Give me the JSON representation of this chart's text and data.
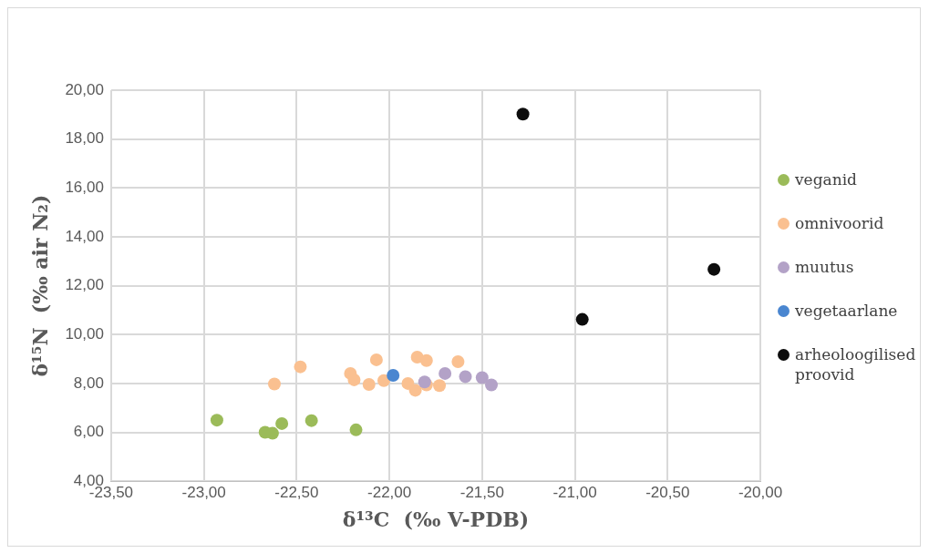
{
  "chart_data": {
    "type": "scatter",
    "xlabel": "δ¹³C  (‰ V-PDB)",
    "ylabel": "δ¹⁵N  (‰ air N₂)",
    "xlim": [
      -23.5,
      -20
    ],
    "xticks": [
      {
        "value": -23.5,
        "label": "-23,50"
      },
      {
        "value": -23,
        "label": "-23,00"
      },
      {
        "value": -22.5,
        "label": "-22,50"
      },
      {
        "value": -22,
        "label": "-22,00"
      },
      {
        "value": -21.5,
        "label": "-21,50"
      },
      {
        "value": -21,
        "label": "-21,00"
      },
      {
        "value": -20.5,
        "label": "-20,50"
      },
      {
        "value": -20,
        "label": "-20,00"
      }
    ],
    "ylim": [
      4,
      20
    ],
    "yticks": [
      {
        "value": 4,
        "label": "4,00"
      },
      {
        "value": 6,
        "label": "6,00"
      },
      {
        "value": 8,
        "label": "8,00"
      },
      {
        "value": 10,
        "label": "10,00"
      },
      {
        "value": 12,
        "label": "12,00"
      },
      {
        "value": 14,
        "label": "14,00"
      },
      {
        "value": 16,
        "label": "16,00"
      },
      {
        "value": 18,
        "label": "18,00"
      },
      {
        "value": 20,
        "label": "20,00"
      }
    ],
    "grid": true,
    "legend": "right",
    "marker": "circle",
    "series": [
      {
        "name": "veganid",
        "color": "#9bbb59",
        "x": [
          -22.93,
          -22.67,
          -22.63,
          -22.58,
          -22.42,
          -22.18
        ],
        "values": [
          6.5,
          6.0,
          5.96,
          6.36,
          6.48,
          6.1
        ]
      },
      {
        "name": "omnivoorid",
        "color": "#fac090",
        "x": [
          -22.62,
          -22.48,
          -22.21,
          -22.19,
          -22.11,
          -22.07,
          -22.03,
          -21.9,
          -21.86,
          -21.85,
          -21.8,
          -21.8,
          -21.73,
          -21.63
        ],
        "values": [
          7.98,
          8.68,
          8.41,
          8.15,
          7.96,
          8.97,
          8.12,
          8.0,
          7.72,
          9.08,
          8.94,
          7.94,
          7.91,
          8.89
        ]
      },
      {
        "name": "muutus",
        "color": "#b3a2c7",
        "x": [
          -21.81,
          -21.7,
          -21.59,
          -21.5,
          -21.45
        ],
        "values": [
          8.06,
          8.41,
          8.28,
          8.24,
          7.94
        ]
      },
      {
        "name": "vegetaarlane",
        "color": "#4a86d0",
        "x": [
          -21.98
        ],
        "values": [
          8.33
        ]
      },
      {
        "name": "arheoloogilised proovid",
        "color": "#0d0d0d",
        "x": [
          -21.28,
          -20.96,
          -20.25
        ],
        "values": [
          19.02,
          10.62,
          12.67
        ]
      }
    ]
  }
}
